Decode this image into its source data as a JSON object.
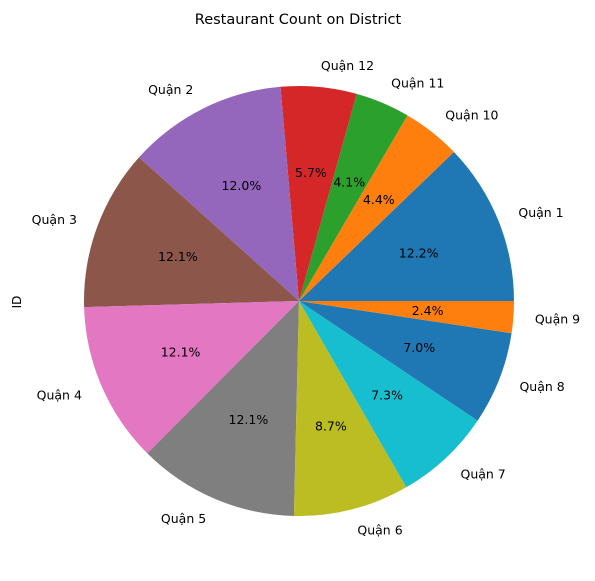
{
  "chart_data": {
    "type": "pie",
    "title": "Restaurant Count on District",
    "ylabel": "ID",
    "start_angle_deg": 0,
    "direction": "counterclockwise",
    "slices": [
      {
        "label": "Quận 1",
        "value": 12.2,
        "pct_label": "12.2%",
        "color": "#1f77b4"
      },
      {
        "label": "Quận 10",
        "value": 4.4,
        "pct_label": "4.4%",
        "color": "#ff7f0e"
      },
      {
        "label": "Quận 11",
        "value": 4.1,
        "pct_label": "4.1%",
        "color": "#2ca02c"
      },
      {
        "label": "Quận 12",
        "value": 5.7,
        "pct_label": "5.7%",
        "color": "#d62728"
      },
      {
        "label": "Quận 2",
        "value": 12.0,
        "pct_label": "12.0%",
        "color": "#9467bd"
      },
      {
        "label": "Quận 3",
        "value": 12.1,
        "pct_label": "12.1%",
        "color": "#8c564b"
      },
      {
        "label": "Quận 4",
        "value": 12.1,
        "pct_label": "12.1%",
        "color": "#e377c2"
      },
      {
        "label": "Quận 5",
        "value": 12.1,
        "pct_label": "12.1%",
        "color": "#7f7f7f"
      },
      {
        "label": "Quận 6",
        "value": 8.7,
        "pct_label": "8.7%",
        "color": "#bcbd22"
      },
      {
        "label": "Quận 7",
        "value": 7.3,
        "pct_label": "7.3%",
        "color": "#17becf"
      },
      {
        "label": "Quận 8",
        "value": 7.0,
        "pct_label": "7.0%",
        "color": "#1f77b4"
      },
      {
        "label": "Quận 9",
        "value": 2.4,
        "pct_label": "2.4%",
        "color": "#ff7f0e"
      }
    ]
  }
}
